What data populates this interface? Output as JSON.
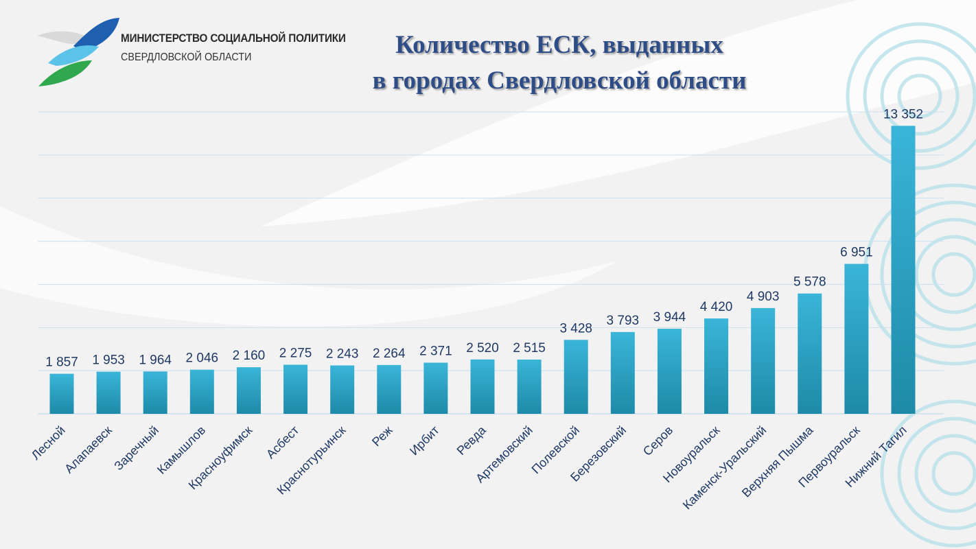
{
  "header": {
    "logo_line1": "МИНИСТЕРСТВО СОЦИАЛЬНОЙ ПОЛИТИКИ",
    "logo_line2": "СВЕРДЛОВСКОЙ ОБЛАСТИ",
    "title_line1": "Количество ЕСК, выданных",
    "title_line2": "в городах Свердловской области"
  },
  "colors": {
    "bar_top": "#3ab5d8",
    "bar_bottom": "#1e8aa8",
    "title": "#2e4d86",
    "labels": "#1f3864",
    "grid": "#c9dfee"
  },
  "chart_data": {
    "type": "bar",
    "title": "Количество ЕСК, выданных в городах Свердловской области",
    "xlabel": "",
    "ylabel": "",
    "ylim": [
      0,
      14000
    ],
    "grid": true,
    "categories": [
      "Лесной",
      "Алапаевск",
      "Заречный",
      "Камышлов",
      "Красноуфимск",
      "Асбест",
      "Краснотурьинск",
      "Реж",
      "Ирбит",
      "Ревда",
      "Артемовский",
      "Полевской",
      "Березовский",
      "Серов",
      "Новоуральск",
      "Каменск-Уральский",
      "Верхняя Пышма",
      "Первоуральск",
      "Нижний Тагил"
    ],
    "values": [
      1857,
      1953,
      1964,
      2046,
      2160,
      2275,
      2243,
      2264,
      2371,
      2520,
      2515,
      3428,
      3793,
      3944,
      4420,
      4903,
      5578,
      6951,
      13352
    ],
    "value_labels": [
      "1 857",
      "1 953",
      "1 964",
      "2 046",
      "2 160",
      "2 275",
      "2 243",
      "2 264",
      "2 371",
      "2 520",
      "2 515",
      "3 428",
      "3 793",
      "3 944",
      "4 420",
      "4 903",
      "5 578",
      "6 951",
      "13 352"
    ]
  }
}
